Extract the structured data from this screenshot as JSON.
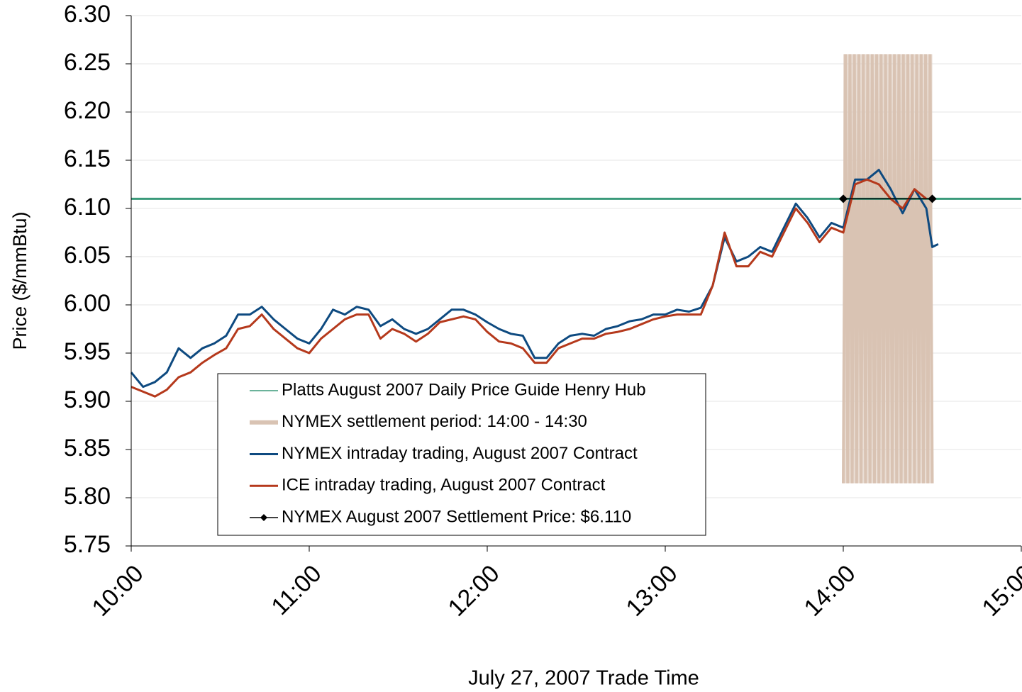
{
  "chart_data": {
    "type": "line",
    "xlabel": "July 27, 2007 Trade Time",
    "ylabel": "Price ($/mmBtu)",
    "xlim": [
      600,
      900
    ],
    "xticks": [
      {
        "value": 600,
        "label": "10:00"
      },
      {
        "value": 660,
        "label": "11:00"
      },
      {
        "value": 720,
        "label": "12:00"
      },
      {
        "value": 780,
        "label": "13:00"
      },
      {
        "value": 840,
        "label": "14:00"
      },
      {
        "value": 900,
        "label": "15:00"
      }
    ],
    "ylim": [
      5.75,
      6.3
    ],
    "yticks": [
      {
        "value": 5.75,
        "label": "5.75"
      },
      {
        "value": 5.8,
        "label": "5.80"
      },
      {
        "value": 5.85,
        "label": "5.85"
      },
      {
        "value": 5.9,
        "label": "5.90"
      },
      {
        "value": 5.95,
        "label": "5.95"
      },
      {
        "value": 6.0,
        "label": "6.00"
      },
      {
        "value": 6.05,
        "label": "6.05"
      },
      {
        "value": 6.1,
        "label": "6.10"
      },
      {
        "value": 6.15,
        "label": "6.15"
      },
      {
        "value": 6.2,
        "label": "6.20"
      },
      {
        "value": 6.25,
        "label": "6.25"
      },
      {
        "value": 6.3,
        "label": "6.30"
      }
    ],
    "grid": true,
    "series": [
      {
        "name": "Platts August 2007 Daily Price Guide Henry Hub",
        "color": "#3a9a7a",
        "x": [
          600,
          900
        ],
        "values": [
          6.11,
          6.11
        ]
      },
      {
        "name": "NYMEX settlement period: 14:00 - 14:30",
        "color": "#d9c3b3",
        "style": "band",
        "x": [
          840,
          870
        ],
        "values": [
          5.815,
          6.26
        ]
      },
      {
        "name": "NYMEX intraday trading, August 2007 Contract",
        "color": "#0e4a80",
        "x": [
          600,
          604,
          608,
          612,
          616,
          620,
          624,
          628,
          632,
          636,
          640,
          644,
          648,
          652,
          656,
          660,
          664,
          668,
          672,
          676,
          680,
          684,
          688,
          692,
          696,
          700,
          704,
          708,
          712,
          716,
          720,
          724,
          728,
          732,
          736,
          740,
          744,
          748,
          752,
          756,
          760,
          764,
          768,
          772,
          776,
          780,
          784,
          788,
          792,
          796,
          800,
          804,
          808,
          812,
          816,
          820,
          824,
          828,
          832,
          836,
          840,
          844,
          848,
          852,
          856,
          860,
          864,
          868,
          870,
          872
        ],
        "values": [
          5.93,
          5.915,
          5.92,
          5.93,
          5.955,
          5.945,
          5.955,
          5.96,
          5.968,
          5.99,
          5.99,
          5.998,
          5.985,
          5.975,
          5.965,
          5.96,
          5.975,
          5.995,
          5.99,
          5.998,
          5.995,
          5.978,
          5.985,
          5.975,
          5.97,
          5.975,
          5.985,
          5.995,
          5.995,
          5.99,
          5.982,
          5.975,
          5.97,
          5.968,
          5.945,
          5.945,
          5.96,
          5.968,
          5.97,
          5.968,
          5.975,
          5.978,
          5.983,
          5.985,
          5.99,
          5.99,
          5.995,
          5.993,
          5.997,
          6.02,
          6.07,
          6.045,
          6.05,
          6.06,
          6.055,
          6.08,
          6.105,
          6.09,
          6.07,
          6.085,
          6.08,
          6.13,
          6.13,
          6.14,
          6.12,
          6.095,
          6.12,
          6.1,
          6.06,
          6.063
        ]
      },
      {
        "name": "ICE intraday trading, August 2007 Contract",
        "color": "#b5391c",
        "x": [
          600,
          604,
          608,
          612,
          616,
          620,
          624,
          628,
          632,
          636,
          640,
          644,
          648,
          652,
          656,
          660,
          664,
          668,
          672,
          676,
          680,
          684,
          688,
          692,
          696,
          700,
          704,
          708,
          712,
          716,
          720,
          724,
          728,
          732,
          736,
          740,
          744,
          748,
          752,
          756,
          760,
          764,
          768,
          772,
          776,
          780,
          784,
          788,
          792,
          796,
          800,
          804,
          808,
          812,
          816,
          820,
          824,
          828,
          832,
          836,
          840,
          844,
          848,
          852,
          856,
          860,
          864,
          868
        ],
        "values": [
          5.915,
          5.91,
          5.905,
          5.912,
          5.925,
          5.93,
          5.94,
          5.948,
          5.955,
          5.975,
          5.978,
          5.99,
          5.975,
          5.965,
          5.955,
          5.95,
          5.965,
          5.975,
          5.985,
          5.99,
          5.99,
          5.965,
          5.975,
          5.97,
          5.962,
          5.97,
          5.982,
          5.985,
          5.988,
          5.985,
          5.972,
          5.962,
          5.96,
          5.955,
          5.94,
          5.94,
          5.955,
          5.96,
          5.965,
          5.965,
          5.97,
          5.972,
          5.975,
          5.98,
          5.985,
          5.988,
          5.99,
          5.99,
          5.99,
          6.02,
          6.075,
          6.04,
          6.04,
          6.055,
          6.05,
          6.075,
          6.1,
          6.085,
          6.065,
          6.08,
          6.075,
          6.125,
          6.13,
          6.125,
          6.11,
          6.1,
          6.12,
          6.11
        ]
      },
      {
        "name": "NYMEX August 2007 Settlement Price: $6.110",
        "color": "#000000",
        "marker": "diamond",
        "x": [
          840,
          870
        ],
        "values": [
          6.11,
          6.11
        ]
      }
    ]
  }
}
